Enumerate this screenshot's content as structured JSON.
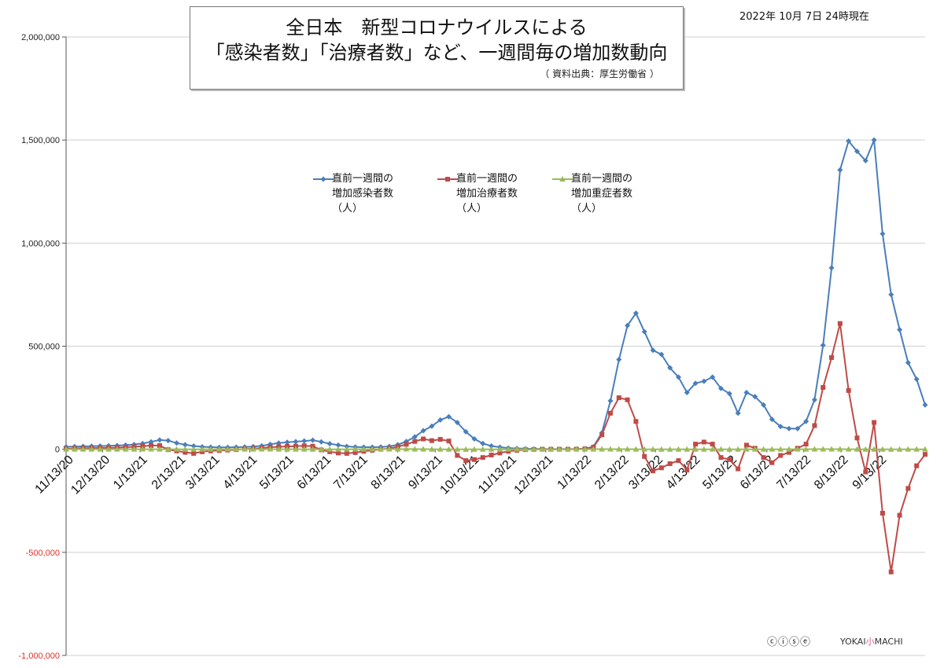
{
  "header": {
    "title_line1": "全日本　新型コロナウイルスによる",
    "title_line2": "「感染者数」「治療者数」など、一週間毎の増加数動向",
    "source": "（ 資料出典：厚生労働省 ）",
    "date": "2022年 10月 7日 24時現在"
  },
  "footer": {
    "license_icons": "ⓒⓘⓢⓔ",
    "brand_left": "YOKAI",
    "brand_mid": "小",
    "brand_right": "MACHI"
  },
  "chart_data": {
    "type": "line",
    "ylim": [
      -1000000,
      2000000
    ],
    "yticks": [
      -1000000,
      -500000,
      0,
      500000,
      1000000,
      1500000,
      2000000
    ],
    "ytick_labels": [
      "-1,000,000",
      "-500,000",
      "0",
      "500,000",
      "1,000,000",
      "1,500,000",
      "2,000,000"
    ],
    "xtick_labels": [
      "11/13/20",
      "12/13/20",
      "1/13/21",
      "2/13/21",
      "3/13/21",
      "4/13/21",
      "5/13/21",
      "6/13/21",
      "7/13/21",
      "8/13/21",
      "9/13/21",
      "10/13/21",
      "11/13/21",
      "12/13/21",
      "1/13/22",
      "2/13/22",
      "3/13/22",
      "4/13/22",
      "5/13/22",
      "6/13/22",
      "7/13/22",
      "8/13/22",
      "9/13/22"
    ],
    "xtick_index": [
      0,
      4.3,
      8.7,
      13.2,
      17.2,
      21.6,
      25.9,
      30.3,
      34.6,
      39.0,
      43.4,
      47.7,
      52.1,
      56.4,
      60.9,
      65.3,
      69.3,
      73.7,
      78.0,
      82.4,
      86.7,
      91.1,
      95.6
    ],
    "series": [
      {
        "name": "直前一週間の\n増加感染者数\n（人）",
        "color": "#4a7ebb",
        "marker": "diamond",
        "values": [
          12000,
          13000,
          14000,
          15000,
          16000,
          17000,
          18000,
          20000,
          23000,
          28000,
          36000,
          45000,
          42000,
          30000,
          22000,
          16000,
          12000,
          10000,
          9000,
          9000,
          10000,
          11000,
          13000,
          17000,
          24000,
          30000,
          34000,
          37000,
          40000,
          44000,
          36000,
          27000,
          20000,
          14000,
          11000,
          10000,
          10000,
          11000,
          14000,
          22000,
          38000,
          60000,
          90000,
          112000,
          142000,
          158000,
          130000,
          85000,
          50000,
          28000,
          16000,
          10000,
          6000,
          4000,
          3000,
          2000,
          1500,
          1200,
          1000,
          1000,
          1500,
          3000,
          12000,
          80000,
          235000,
          435000,
          600000,
          660000,
          570000,
          480000,
          460000,
          395000,
          350000,
          275000,
          320000,
          330000,
          350000,
          295000,
          270000,
          175000,
          275000,
          255000,
          215000,
          145000,
          110000,
          100000,
          100000,
          135000,
          240000,
          505000,
          880000,
          1355000,
          1495000,
          1445000,
          1400000,
          1500000,
          1045000,
          750000,
          580000,
          420000,
          340000,
          215000
        ]
      },
      {
        "name": "直前一週間の\n増加治療者数\n（人）",
        "color": "#be4b48",
        "marker": "square",
        "values": [
          2000,
          4000,
          5000,
          6000,
          6000,
          7000,
          8000,
          10000,
          12000,
          15000,
          18000,
          18000,
          -2000,
          -8000,
          -15000,
          -20000,
          -12000,
          -8000,
          -6000,
          -4000,
          -2000,
          1000,
          3000,
          6000,
          10000,
          12000,
          14000,
          15000,
          17000,
          15000,
          -3000,
          -12000,
          -18000,
          -20000,
          -16000,
          -10000,
          -5000,
          0,
          4000,
          12000,
          24000,
          38000,
          50000,
          42000,
          48000,
          40000,
          -30000,
          -55000,
          -50000,
          -40000,
          -28000,
          -18000,
          -10000,
          -5000,
          -2000,
          -1000,
          0,
          0,
          0,
          0,
          500,
          2000,
          10000,
          70000,
          175000,
          250000,
          240000,
          135000,
          -35000,
          -105000,
          -90000,
          -70000,
          -55000,
          -100000,
          25000,
          35000,
          25000,
          -40000,
          -50000,
          -95000,
          20000,
          5000,
          -40000,
          -65000,
          -30000,
          -15000,
          5000,
          25000,
          115000,
          300000,
          445000,
          610000,
          285000,
          55000,
          -110000,
          130000,
          -310000,
          -595000,
          -320000,
          -190000,
          -80000,
          -25000
        ]
      },
      {
        "name": "直前一週間の\n増加重症者数\n（人）",
        "color": "#9bbb59",
        "marker": "triangle",
        "values": [
          100,
          100,
          100,
          200,
          200,
          200,
          300,
          300,
          300,
          400,
          400,
          300,
          100,
          -100,
          -200,
          -200,
          -100,
          -100,
          0,
          0,
          100,
          200,
          300,
          400,
          400,
          300,
          200,
          100,
          0,
          -100,
          -200,
          -200,
          -100,
          0,
          100,
          200,
          300,
          500,
          700,
          800,
          900,
          800,
          600,
          300,
          0,
          -300,
          -500,
          -600,
          -500,
          -300,
          -200,
          -100,
          0,
          0,
          0,
          0,
          0,
          0,
          0,
          0,
          0,
          100,
          300,
          600,
          800,
          700,
          500,
          200,
          0,
          -200,
          -300,
          -400,
          -300,
          -200,
          -100,
          -100,
          0,
          0,
          -100,
          -100,
          0,
          0,
          0,
          0,
          0,
          100,
          200,
          300,
          500,
          600,
          700,
          500,
          300,
          0,
          -200,
          -300,
          -300,
          -200,
          -100,
          0,
          0,
          0
        ]
      }
    ]
  }
}
